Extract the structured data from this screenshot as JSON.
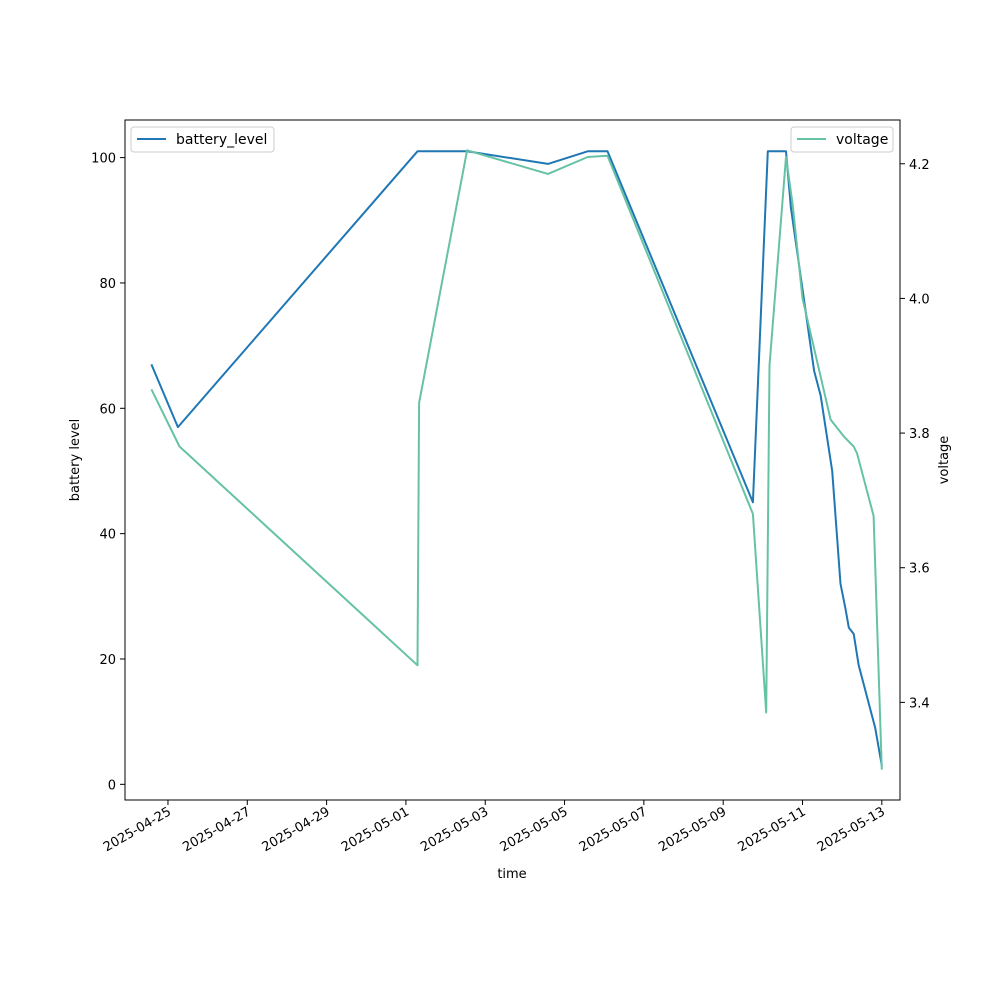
{
  "chart_data": {
    "type": "line",
    "title": "",
    "xlabel": "time",
    "ylabel_left": "battery level",
    "ylabel_right": "voltage",
    "x_ticks": [
      "2025-04-25",
      "2025-04-27",
      "2025-04-29",
      "2025-05-01",
      "2025-05-03",
      "2025-05-05",
      "2025-05-07",
      "2025-05-09",
      "2025-05-11",
      "2025-05-13"
    ],
    "ylim_left": [
      -2.5,
      106
    ],
    "yticks_left": [
      0,
      20,
      40,
      60,
      80,
      100
    ],
    "ylim_right": [
      3.255,
      4.265
    ],
    "yticks_right": [
      3.4,
      3.6,
      3.8,
      4.0,
      4.2
    ],
    "grid": false,
    "series": [
      {
        "name": "battery_level",
        "axis": "left",
        "color": "#1f77b4",
        "legend_position": "upper-left",
        "points": [
          [
            "2025-04-24T14:00",
            67
          ],
          [
            "2025-04-25T06:00",
            57
          ],
          [
            "2025-05-01T07:00",
            101
          ],
          [
            "2025-05-02T13:00",
            101
          ],
          [
            "2025-05-04T14:00",
            99
          ],
          [
            "2025-05-05T14:00",
            101
          ],
          [
            "2025-05-06T02:00",
            101
          ],
          [
            "2025-05-09T18:00",
            45
          ],
          [
            "2025-05-10T03:00",
            101
          ],
          [
            "2025-05-10T14:00",
            101
          ],
          [
            "2025-05-10T17:00",
            92
          ],
          [
            "2025-05-11T07:00",
            66
          ],
          [
            "2025-05-11T11:00",
            62
          ],
          [
            "2025-05-11T18:00",
            50
          ],
          [
            "2025-05-11T23:00",
            32
          ],
          [
            "2025-05-12T02:00",
            28
          ],
          [
            "2025-05-12T04:00",
            25
          ],
          [
            "2025-05-12T07:00",
            24
          ],
          [
            "2025-05-12T10:00",
            19
          ],
          [
            "2025-05-12T20:00",
            9
          ],
          [
            "2025-05-13T00:00",
            3
          ]
        ]
      },
      {
        "name": "voltage",
        "axis": "right",
        "color": "#66c2a5",
        "legend_position": "upper-right",
        "points": [
          [
            "2025-04-24T14:00",
            3.865
          ],
          [
            "2025-04-25T07:00",
            3.78
          ],
          [
            "2025-05-01T07:00",
            3.455
          ],
          [
            "2025-05-01T08:00",
            3.845
          ],
          [
            "2025-05-02T13:00",
            4.22
          ],
          [
            "2025-05-04T14:00",
            4.185
          ],
          [
            "2025-05-05T14:00",
            4.21
          ],
          [
            "2025-05-06T02:00",
            4.212
          ],
          [
            "2025-05-09T18:00",
            3.68
          ],
          [
            "2025-05-10T02:00",
            3.385
          ],
          [
            "2025-05-10T04:00",
            3.9
          ],
          [
            "2025-05-10T14:00",
            4.21
          ],
          [
            "2025-05-10T18:00",
            4.14
          ],
          [
            "2025-05-11T00:00",
            4.0
          ],
          [
            "2025-05-11T17:00",
            3.82
          ],
          [
            "2025-05-12T01:00",
            3.795
          ],
          [
            "2025-05-12T07:00",
            3.78
          ],
          [
            "2025-05-12T09:00",
            3.77
          ],
          [
            "2025-05-12T19:00",
            3.677
          ],
          [
            "2025-05-13T00:00",
            3.3
          ]
        ]
      }
    ]
  }
}
